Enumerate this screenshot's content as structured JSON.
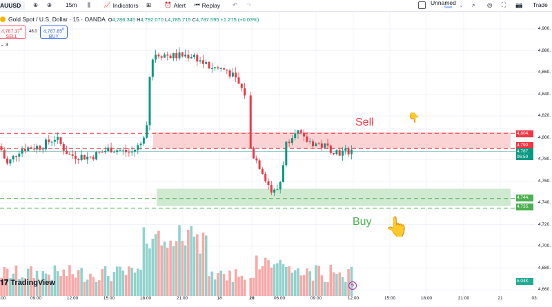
{
  "toolbar": {
    "symbol": "AUUSD",
    "interval": "15m",
    "indicators": "Indicators",
    "alert": "Alert",
    "replay": "Replay",
    "layout_name": "Unnamed",
    "layout_save": "Save",
    "trade": "Trade"
  },
  "legend": {
    "title": "Gold Spot / U.S. Dollar · 15 · OANDA",
    "o_label": "O",
    "o": "4,786.345",
    "h_label": "H",
    "h": "4,792.070",
    "l_label": "L",
    "l": "4,785.715",
    "c_label": "C",
    "c": "4,787.595",
    "change": "+1.275 (+0.03%)"
  },
  "trade": {
    "sell_price": "4,787.37",
    "sell_sup": "0",
    "sell_label": "SELL",
    "spread": "48.0",
    "buy_price": "4,787.85",
    "buy_sup": "0",
    "buy_label": "BUY"
  },
  "indicators_count": "3",
  "price_axis": [
    "4,900.",
    "4,880.",
    "4,860.",
    "4,840.",
    "4,820.",
    "4,800.",
    "4,780.",
    "4,760.",
    "4,740.",
    "4,720.",
    "4,700.",
    "4,680.",
    "4,660."
  ],
  "price_axis_values": [
    4900,
    4880,
    4860,
    4840,
    4820,
    4800,
    4780,
    4760,
    4740,
    4720,
    4700,
    4680,
    4660
  ],
  "price_labels": {
    "sell_top": "4,804.",
    "sell_bottom": "4,790.",
    "current": "4,787.",
    "countdown": "06:50",
    "buy_top": "4,744.",
    "buy_bottom": "4,735.",
    "volume": "5.04K"
  },
  "levels": {
    "sell_top": 4804,
    "sell_bottom": 4790,
    "current": 4787.5,
    "buy_top": 4744,
    "buy_bottom": 4735
  },
  "zones": {
    "sell": {
      "from": 4790,
      "to": 4805
    },
    "buy": {
      "from": 4737,
      "to": 4753
    }
  },
  "annotations": {
    "sell": "Sell",
    "buy": "Buy",
    "sell_icon": "hand-pointing-down",
    "buy_icon": "hand-pointing-up"
  },
  "time_axis": [
    ":00",
    "09:00",
    "12:00",
    "15:00",
    "18:00",
    "21:00",
    "18",
    "20",
    "06:00",
    "09:00",
    "12:00",
    "15:00",
    "18:00",
    "21:00",
    "21",
    "03:"
  ],
  "brand": "TradingView",
  "colors": {
    "up": "#089981",
    "down": "#f23645",
    "up_vol": "#92d2cc",
    "down_vol": "#f7a9a7",
    "sell_zone": "#fccbcd",
    "buy_zone": "#c8e6c9"
  },
  "price_path": [
    [
      0,
      4792
    ],
    [
      10,
      4775
    ],
    [
      30,
      4790
    ],
    [
      60,
      4792
    ],
    [
      80,
      4800
    ],
    [
      100,
      4784
    ],
    [
      130,
      4782
    ],
    [
      160,
      4790
    ],
    [
      190,
      4786
    ],
    [
      205,
      4795
    ],
    [
      213,
      4815
    ],
    [
      218,
      4868
    ],
    [
      225,
      4878
    ],
    [
      250,
      4875
    ],
    [
      280,
      4876
    ],
    [
      300,
      4866
    ],
    [
      330,
      4862
    ],
    [
      345,
      4850
    ],
    [
      357,
      4838
    ],
    [
      362,
      4790
    ],
    [
      380,
      4770
    ],
    [
      395,
      4748
    ],
    [
      405,
      4755
    ],
    [
      415,
      4795
    ],
    [
      428,
      4808
    ],
    [
      440,
      4798
    ],
    [
      470,
      4792
    ],
    [
      495,
      4786
    ],
    [
      513,
      4789
    ]
  ]
}
